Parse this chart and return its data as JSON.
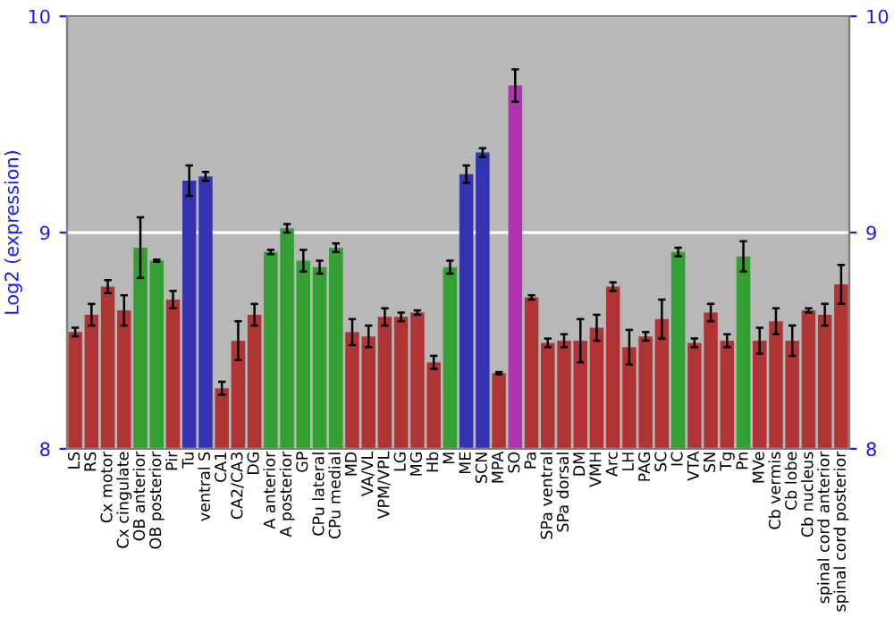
{
  "chart_data": {
    "type": "bar",
    "ylabel": "Log2 (expression)",
    "categories": [
      "LS",
      "RS",
      "Cx motor",
      "Cx cingulate",
      "OB anterior",
      "OB posterior",
      "Pir",
      "Tu",
      "ventral S",
      "CA1",
      "CA2/CA3",
      "DG",
      "A anterior",
      "A posterior",
      "GP",
      "CPu lateral",
      "CPu medial",
      "MD",
      "VA/VL",
      "VPM/VPL",
      "LG",
      "MG",
      "Hb",
      "M",
      "ME",
      "SCN",
      "MPA",
      "SO",
      "Pa",
      "SPa ventral",
      "SPa dorsal",
      "DM",
      "VMH",
      "Arc",
      "LH",
      "PAG",
      "SC",
      "IC",
      "VTA",
      "SN",
      "Tg",
      "Pn",
      "MVe",
      "Cb vermis",
      "Cb lobe",
      "Cb nucleus",
      "spinal cord anterior",
      "spinal cord posterior"
    ],
    "values": [
      8.54,
      8.62,
      8.75,
      8.64,
      8.93,
      8.87,
      8.69,
      9.24,
      9.26,
      8.28,
      8.5,
      8.62,
      8.91,
      9.02,
      8.87,
      8.84,
      8.93,
      8.54,
      8.52,
      8.61,
      8.61,
      8.63,
      8.4,
      8.84,
      9.27,
      9.37,
      8.35,
      9.68,
      8.7,
      8.49,
      8.5,
      8.5,
      8.56,
      8.75,
      8.47,
      8.52,
      8.6,
      8.91,
      8.49,
      8.63,
      8.5,
      8.89,
      8.5,
      8.59,
      8.5,
      8.64,
      8.62,
      8.76
    ],
    "errors": [
      0.02,
      0.05,
      0.03,
      0.07,
      0.14,
      0.005,
      0.04,
      0.07,
      0.02,
      0.03,
      0.09,
      0.05,
      0.01,
      0.02,
      0.05,
      0.03,
      0.02,
      0.06,
      0.05,
      0.04,
      0.02,
      0.01,
      0.03,
      0.03,
      0.04,
      0.02,
      0.005,
      0.075,
      0.01,
      0.02,
      0.03,
      0.1,
      0.06,
      0.02,
      0.08,
      0.02,
      0.09,
      0.02,
      0.02,
      0.04,
      0.03,
      0.07,
      0.06,
      0.06,
      0.07,
      0.01,
      0.05,
      0.09
    ],
    "colors": [
      "#b03434",
      "#b03434",
      "#b03434",
      "#b03434",
      "#34a034",
      "#34a034",
      "#b03434",
      "#3434b0",
      "#3434b0",
      "#b03434",
      "#b03434",
      "#b03434",
      "#34a034",
      "#34a034",
      "#34a034",
      "#34a034",
      "#34a034",
      "#b03434",
      "#b03434",
      "#b03434",
      "#b03434",
      "#b03434",
      "#b03434",
      "#34a034",
      "#3434b0",
      "#3434b0",
      "#b03434",
      "#b034b0",
      "#b03434",
      "#b03434",
      "#b03434",
      "#b03434",
      "#b03434",
      "#b03434",
      "#b03434",
      "#b03434",
      "#b03434",
      "#34a034",
      "#b03434",
      "#b03434",
      "#b03434",
      "#34a034",
      "#b03434",
      "#b03434",
      "#b03434",
      "#b03434",
      "#b03434",
      "#b03434"
    ],
    "ylim": [
      8,
      10
    ],
    "yticks": [
      8,
      9,
      10
    ],
    "y2lim": [
      8,
      10
    ],
    "y2ticks": [
      8,
      9,
      10
    ],
    "grid": "y"
  }
}
